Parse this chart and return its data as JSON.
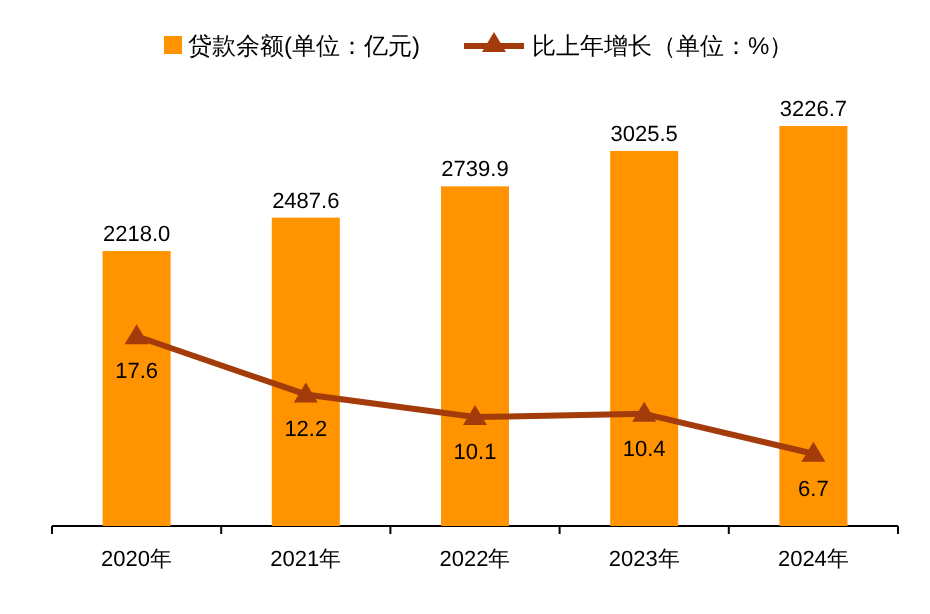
{
  "chart_data": {
    "type": "bar",
    "categories": [
      "2020年",
      "2021年",
      "2022年",
      "2023年",
      "2024年"
    ],
    "series": [
      {
        "name": "贷款余额(单位：亿元)",
        "color": "#ff9300",
        "values": [
          2218.0,
          2487.6,
          2739.9,
          3025.5,
          3226.7
        ],
        "value_labels": [
          "2218.0",
          "2487.6",
          "2739.9",
          "3025.5",
          "3226.7"
        ]
      },
      {
        "name": "比上年增长（单位：%）",
        "type": "line",
        "axis": "y2",
        "color": "#a33b0a",
        "marker": "triangle",
        "values": [
          17.6,
          12.2,
          10.1,
          10.4,
          6.7
        ],
        "value_labels": [
          "17.6",
          "12.2",
          "10.1",
          "10.4",
          "6.7"
        ]
      }
    ],
    "legend": "top",
    "tick_labels": "x"
  }
}
